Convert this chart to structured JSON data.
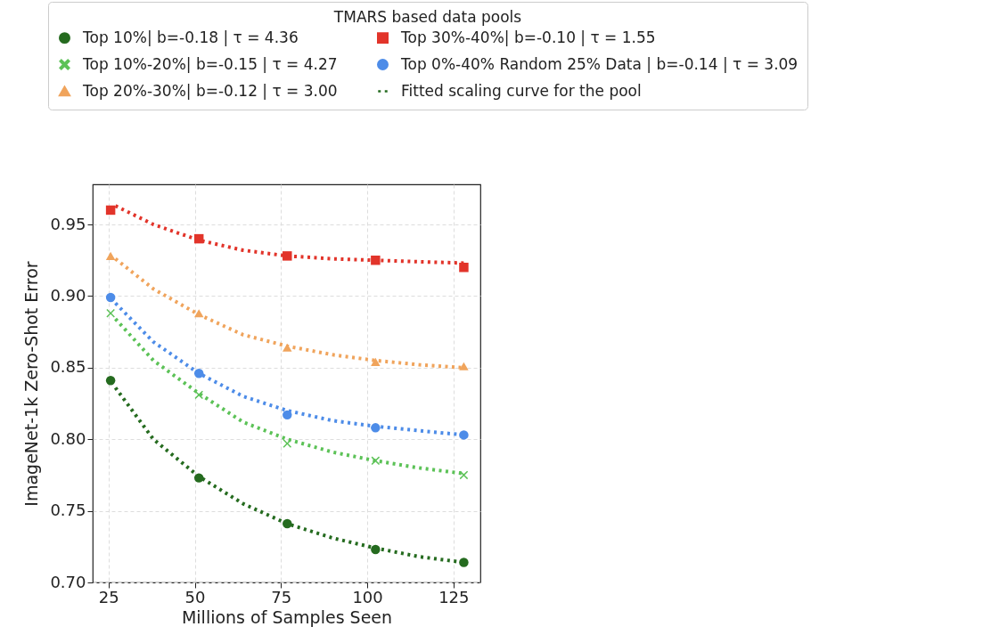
{
  "chart_data": {
    "type": "scatter",
    "legend_title": "TMARS based data pools",
    "xlabel": "Millions of Samples Seen",
    "ylabel": "ImageNet-1k Zero-Shot Error",
    "x": [
      25.6,
      51.2,
      76.8,
      102.4,
      128
    ],
    "series": [
      {
        "name": "Top 10%| b=-0.18 | τ = 4.36",
        "color": "#256b1f",
        "marker": "circle",
        "values": [
          0.841,
          0.773,
          0.741,
          0.723,
          0.714
        ]
      },
      {
        "name": "Top 10%-20%| b=-0.15 | τ = 4.27",
        "color": "#5cc257",
        "marker": "cross",
        "values": [
          0.888,
          0.831,
          0.797,
          0.785,
          0.775
        ]
      },
      {
        "name": "Top 20%-30%| b=-0.12 | τ = 3.00",
        "color": "#f0a45c",
        "marker": "triangle",
        "values": [
          0.928,
          0.888,
          0.864,
          0.854,
          0.851
        ]
      },
      {
        "name": "Top 30%-40%| b=-0.10 | τ = 1.55",
        "color": "#e2342a",
        "marker": "square",
        "values": [
          0.96,
          0.94,
          0.928,
          0.925,
          0.92
        ]
      },
      {
        "name": "Top 0%-40% Random 25% Data | b=-0.14 | τ = 3.09",
        "color": "#4d8ce8",
        "marker": "circle",
        "values": [
          0.899,
          0.846,
          0.817,
          0.808,
          0.803
        ]
      },
      {
        "name": "Fitted scaling curve for the pool",
        "type": "line",
        "line_style": "dotted",
        "color": "#256b1f",
        "x": [
          27,
          38,
          51.2,
          64,
          76.8,
          90,
          102.4,
          115,
          128
        ],
        "values": [
          0.836,
          0.8,
          0.774,
          0.755,
          0.741,
          0.731,
          0.724,
          0.718,
          0.714
        ]
      },
      {
        "type": "line",
        "line_style": "dotted",
        "color": "#5cc257",
        "x": [
          27,
          38,
          51.2,
          64,
          76.8,
          90,
          102.4,
          115,
          128
        ],
        "values": [
          0.884,
          0.855,
          0.832,
          0.812,
          0.8,
          0.791,
          0.785,
          0.78,
          0.776
        ]
      },
      {
        "type": "line",
        "line_style": "dotted",
        "color": "#f0a45c",
        "x": [
          27,
          38,
          51.2,
          64,
          76.8,
          90,
          102.4,
          115,
          128
        ],
        "values": [
          0.926,
          0.905,
          0.887,
          0.873,
          0.865,
          0.859,
          0.855,
          0.852,
          0.85
        ]
      },
      {
        "type": "line",
        "line_style": "dotted",
        "color": "#e2342a",
        "x": [
          27,
          38,
          51.2,
          64,
          76.8,
          90,
          102.4,
          115,
          128
        ],
        "values": [
          0.963,
          0.95,
          0.939,
          0.932,
          0.928,
          0.926,
          0.925,
          0.924,
          0.923
        ]
      },
      {
        "type": "line",
        "line_style": "dotted",
        "color": "#4d8ce8",
        "x": [
          27,
          38,
          51.2,
          64,
          76.8,
          90,
          102.4,
          115,
          128
        ],
        "values": [
          0.895,
          0.868,
          0.846,
          0.83,
          0.82,
          0.813,
          0.809,
          0.806,
          0.803
        ]
      }
    ],
    "xlim": [
      20.4,
      132.8
    ],
    "xticks": [
      25,
      50,
      75,
      100,
      125
    ],
    "ylim": [
      0.7,
      0.978
    ],
    "yticks": [
      {
        "value": 0.7,
        "label": "0.70"
      },
      0.75,
      {
        "value": 0.8,
        "label": "0.80"
      },
      0.85,
      {
        "value": 0.9,
        "label": "0.90"
      },
      0.95
    ],
    "grid": true,
    "legend": "top"
  }
}
